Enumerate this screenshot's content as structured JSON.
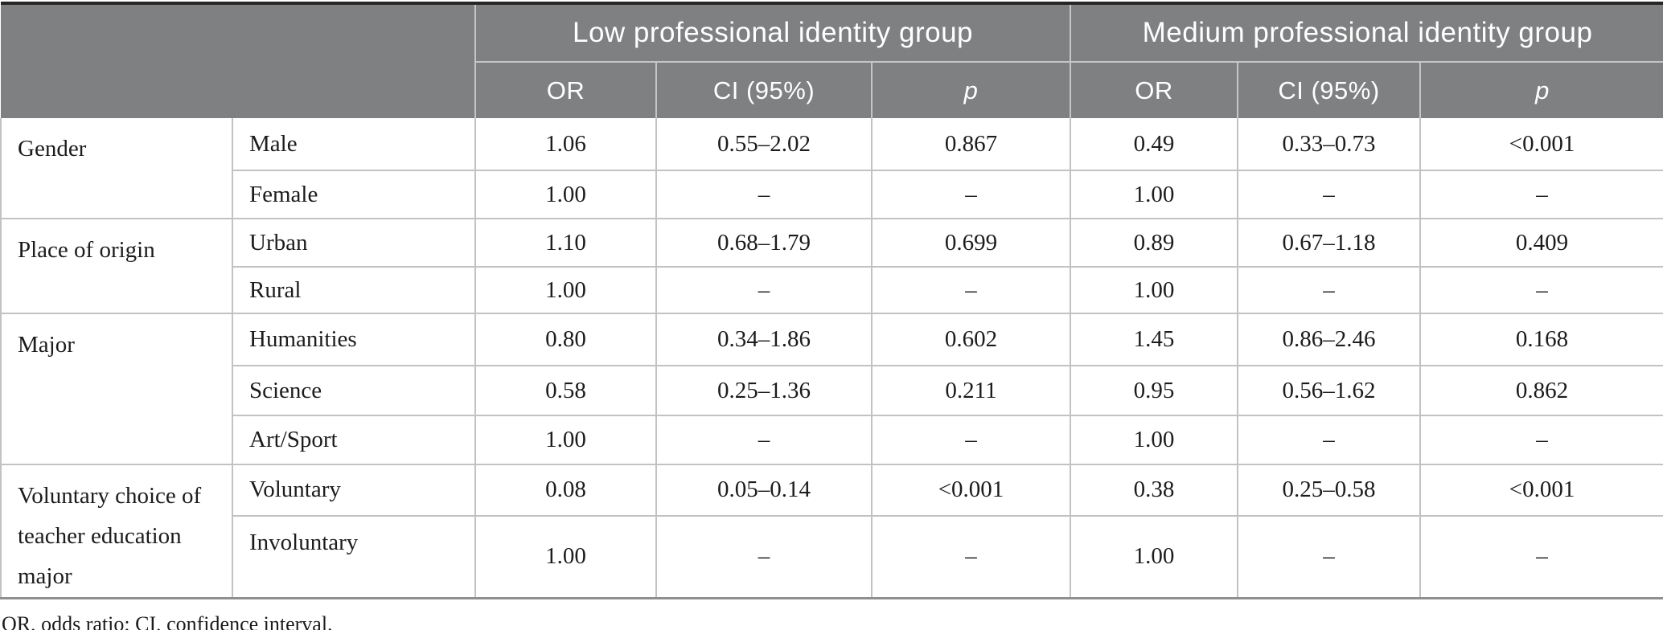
{
  "colors": {
    "header_bg": "#7f8082",
    "header_text": "#ffffff",
    "header_divider": "#c6c6c8",
    "body_text": "#1c1c1c",
    "row_divider": "#c2c2c2",
    "table_top_border": "#262626",
    "table_bottom_border": "#8f8f8f"
  },
  "table": {
    "group_headers": [
      "Low professional identity group",
      "Medium professional identity group"
    ],
    "subheaders": [
      "OR",
      "CI (95%)",
      "p",
      "OR",
      "CI (95%)",
      "p"
    ],
    "rows": [
      {
        "category": "Gender",
        "level": "Male",
        "values": [
          "1.06",
          "0.55–2.02",
          "0.867",
          "0.49",
          "0.33–0.73",
          "<0.001"
        ]
      },
      {
        "level": "Female",
        "values": [
          "1.00",
          "–",
          "–",
          "1.00",
          "–",
          "–"
        ]
      },
      {
        "category": "Place of origin",
        "level": "Urban",
        "values": [
          "1.10",
          "0.68–1.79",
          "0.699",
          "0.89",
          "0.67–1.18",
          "0.409"
        ]
      },
      {
        "level": "Rural",
        "values": [
          "1.00",
          "–",
          "–",
          "1.00",
          "–",
          "–"
        ]
      },
      {
        "category": "Major",
        "level": "Humanities",
        "values": [
          "0.80",
          "0.34–1.86",
          "0.602",
          "1.45",
          "0.86–2.46",
          "0.168"
        ]
      },
      {
        "level": "Science",
        "values": [
          "0.58",
          "0.25–1.36",
          "0.211",
          "0.95",
          "0.56–1.62",
          "0.862"
        ]
      },
      {
        "level": "Art/Sport",
        "values": [
          "1.00",
          "–",
          "–",
          "1.00",
          "–",
          "–"
        ]
      },
      {
        "category": "Voluntary choice of teacher education major",
        "level": "Voluntary",
        "values": [
          "0.08",
          "0.05–0.14",
          "<0.001",
          "0.38",
          "0.25–0.58",
          "<0.001"
        ]
      },
      {
        "level": "Involuntary",
        "values": [
          "1.00",
          "–",
          "–",
          "1.00",
          "–",
          "–"
        ]
      }
    ],
    "footnote": "OR, odds ratio; CI, confidence interval."
  }
}
